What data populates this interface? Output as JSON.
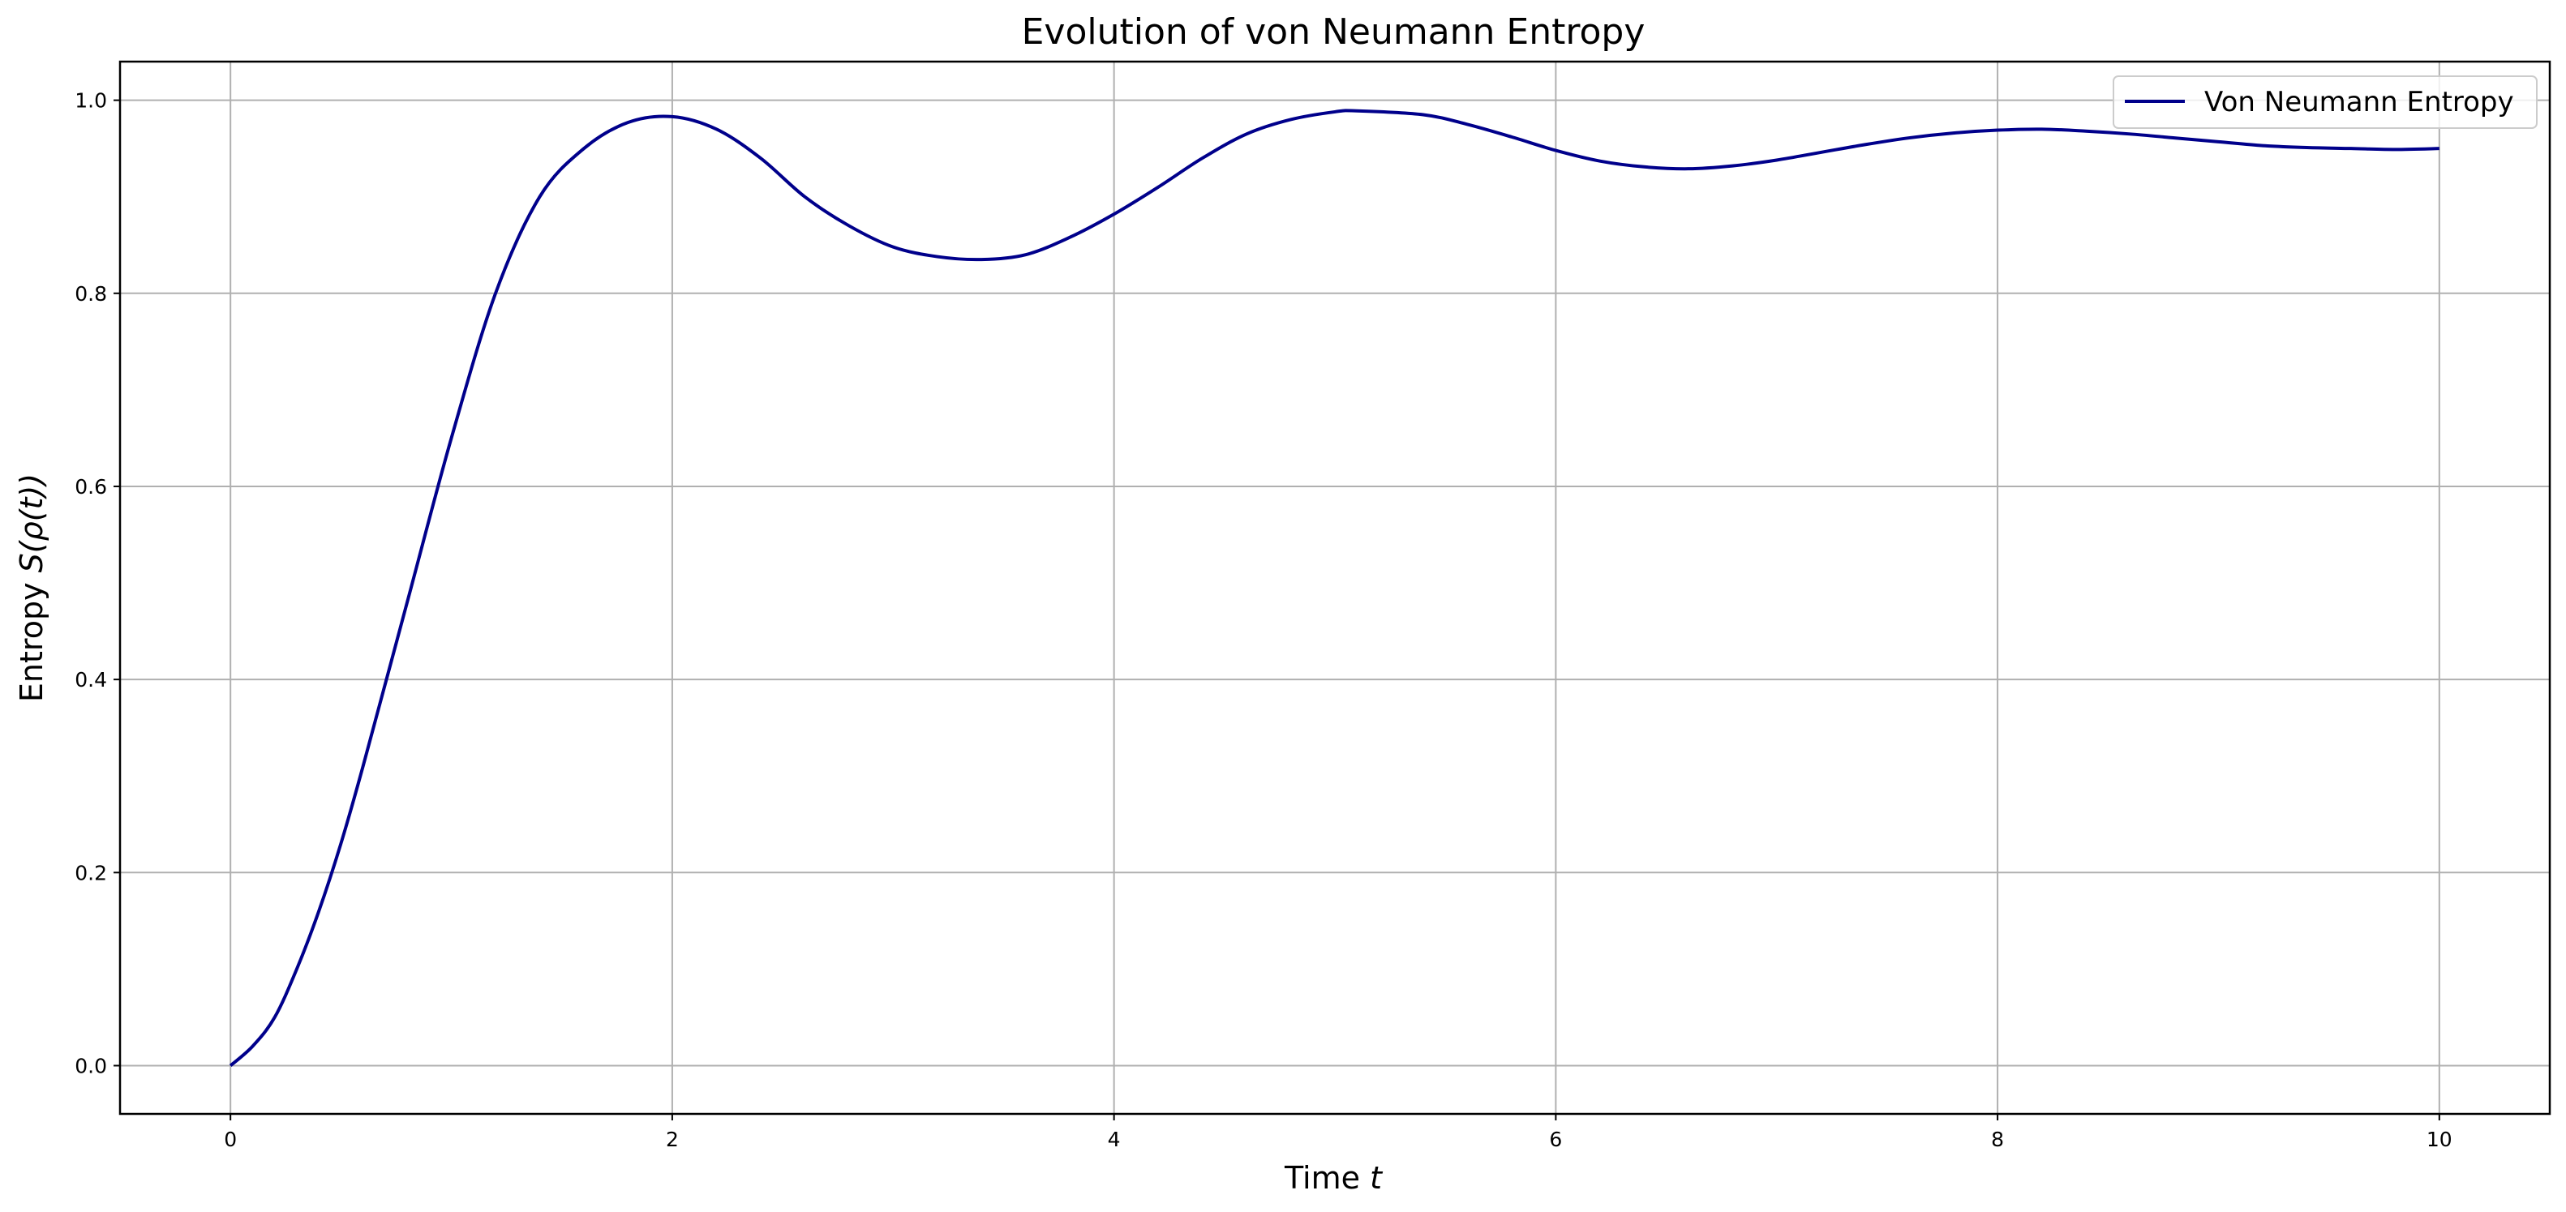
{
  "chart_data": {
    "type": "line",
    "title": "Evolution of von Neumann Entropy",
    "xlabel_text": "Time ",
    "xlabel_var": "t",
    "ylabel_prefix": "Entropy ",
    "ylabel_math": "S(ρ(t))",
    "xlim": [
      -0.5,
      10.5
    ],
    "ylim": [
      -0.05,
      1.04
    ],
    "xticks": [
      0,
      2,
      4,
      6,
      8,
      10
    ],
    "yticks": [
      0.0,
      0.2,
      0.4,
      0.6,
      0.8,
      1.0
    ],
    "xtick_labels": [
      "0",
      "2",
      "4",
      "6",
      "8",
      "10"
    ],
    "ytick_labels": [
      "0.0",
      "0.2",
      "0.4",
      "0.6",
      "0.8",
      "1.0"
    ],
    "grid": true,
    "legend_position": "top-right",
    "series": [
      {
        "name": "Von Neumann Entropy",
        "color": "#00008b",
        "x": [
          0,
          0.1,
          0.2,
          0.3,
          0.4,
          0.5,
          0.6,
          0.8,
          1.0,
          1.2,
          1.4,
          1.6,
          1.8,
          2.0,
          2.2,
          2.4,
          2.6,
          2.8,
          3.0,
          3.2,
          3.4,
          3.6,
          3.8,
          4.0,
          4.2,
          4.4,
          4.6,
          4.8,
          5.0,
          5.1,
          5.4,
          5.6,
          5.8,
          6.0,
          6.2,
          6.4,
          6.6,
          6.8,
          7.0,
          7.2,
          7.4,
          7.6,
          7.8,
          8.0,
          8.2,
          8.4,
          8.6,
          8.8,
          9.0,
          9.2,
          9.4,
          9.6,
          9.8,
          10.0
        ],
        "y": [
          0.0,
          0.02,
          0.05,
          0.1,
          0.16,
          0.23,
          0.31,
          0.48,
          0.65,
          0.8,
          0.9,
          0.95,
          0.977,
          0.983,
          0.97,
          0.94,
          0.9,
          0.87,
          0.848,
          0.838,
          0.835,
          0.84,
          0.858,
          0.882,
          0.91,
          0.94,
          0.965,
          0.98,
          0.988,
          0.989,
          0.985,
          0.975,
          0.962,
          0.948,
          0.937,
          0.931,
          0.929,
          0.932,
          0.938,
          0.946,
          0.954,
          0.961,
          0.966,
          0.969,
          0.97,
          0.968,
          0.965,
          0.961,
          0.957,
          0.953,
          0.951,
          0.95,
          0.949,
          0.95
        ]
      }
    ]
  }
}
